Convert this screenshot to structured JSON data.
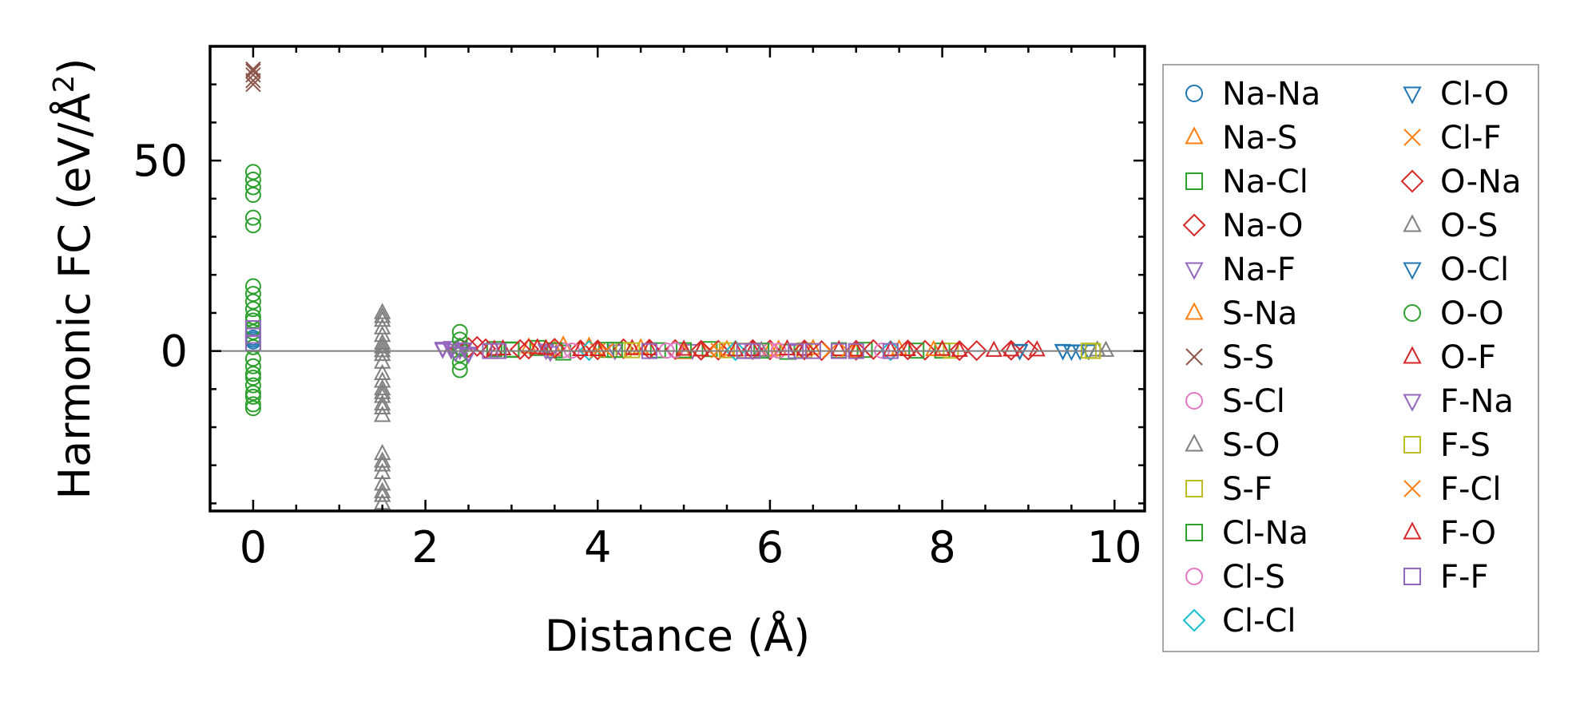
{
  "chart_data": {
    "type": "scatter",
    "title": "",
    "xlabel": "Distance (Å)",
    "ylabel_main": "Harmonic FC (eV/Å",
    "ylabel_sup": "2",
    "ylabel_end": ")",
    "xlim": [
      -0.5,
      10.35
    ],
    "ylim": [
      -42,
      80
    ],
    "xticks": [
      0,
      2,
      4,
      6,
      8,
      10
    ],
    "xtick_labels": [
      "0",
      "2",
      "4",
      "6",
      "8",
      "10"
    ],
    "yticks": [
      0,
      50
    ],
    "ytick_labels": [
      "0",
      "50"
    ],
    "reference_line_y": 0,
    "grid": false,
    "legend_position": "right-outside",
    "legend_columns": 2,
    "series": [
      {
        "name": "Na-Na",
        "marker": "circle",
        "color": "#1f77b4",
        "x": [
          0,
          0,
          0
        ],
        "y": [
          3,
          2.5,
          3.5
        ]
      },
      {
        "name": "Na-S",
        "marker": "triangle-up",
        "color": "#ff7f0e",
        "x": [
          3.2,
          3.4,
          3.6,
          4.0,
          4.5,
          5.0,
          5.5,
          6.0,
          6.5,
          7.0,
          7.5,
          8.0
        ],
        "y": [
          1,
          0.5,
          1.5,
          0.3,
          0.8,
          -0.5,
          0.4,
          0.2,
          0.6,
          -0.3,
          0.5,
          0.2
        ]
      },
      {
        "name": "Na-Cl",
        "marker": "square",
        "color": "#2ca02c",
        "x": [
          2.8,
          3.0,
          3.3,
          3.6,
          4.1,
          4.7,
          5.3,
          6.2,
          7.1,
          8.0
        ],
        "y": [
          0.5,
          0.3,
          0.8,
          -0.4,
          0.3,
          0.2,
          0.5,
          -0.2,
          0.3,
          0.1
        ]
      },
      {
        "name": "Na-O",
        "marker": "diamond",
        "color": "#d62728",
        "x": [
          2.4,
          2.6,
          3.2,
          3.8,
          4.3,
          4.9,
          5.4,
          6.0,
          6.6,
          7.2,
          7.8,
          8.4,
          9.0
        ],
        "y": [
          0.8,
          1.2,
          0.5,
          0.3,
          0.6,
          0.4,
          0.2,
          0.3,
          0.1,
          0.4,
          0.2,
          0.1,
          0.2
        ]
      },
      {
        "name": "Na-F",
        "marker": "triangle-down",
        "color": "#9467bd",
        "x": [
          2.2,
          2.3,
          2.4,
          2.5,
          3.4,
          4.2,
          5.1,
          6.3
        ],
        "y": [
          0.5,
          1.0,
          0.2,
          -0.5,
          0.3,
          0.1,
          0.2,
          0.1
        ]
      },
      {
        "name": "S-Na",
        "marker": "triangle-up",
        "color": "#ff7f0e",
        "x": [
          3.3,
          3.5,
          3.9,
          4.4,
          5.2,
          6.1,
          7.0,
          7.9
        ],
        "y": [
          0.8,
          0.3,
          1.2,
          0.5,
          0.2,
          0.4,
          0.1,
          0.3
        ]
      },
      {
        "name": "S-S",
        "marker": "x",
        "color": "#8c564b",
        "x": [
          0,
          0,
          0,
          0,
          0
        ],
        "y": [
          74,
          72.5,
          71,
          73.5,
          70
        ]
      },
      {
        "name": "S-Cl",
        "marker": "circle",
        "color": "#e377c2",
        "x": [
          3.6,
          4.8,
          6.0,
          7.3
        ],
        "y": [
          0.2,
          0.1,
          0.2,
          0.1
        ]
      },
      {
        "name": "S-O",
        "marker": "triangle-up",
        "color": "#7f7f7f",
        "x": [
          1.5,
          1.5,
          1.5,
          1.5,
          1.5,
          1.5,
          1.5,
          1.5,
          1.5,
          1.5,
          1.5,
          1.5,
          1.5,
          1.5,
          1.5,
          1.5,
          1.5,
          1.5,
          1.5,
          1.5,
          1.5,
          1.5,
          1.5
        ],
        "y": [
          10,
          8,
          6,
          4,
          1,
          0,
          -1,
          -6,
          -8,
          -10,
          -12,
          -14,
          -15,
          -17,
          -27,
          -29,
          -32,
          -35,
          -37,
          -38,
          -40,
          -3,
          2
        ]
      },
      {
        "name": "S-F",
        "marker": "square",
        "color": "#bcbd22",
        "x": [
          4.3,
          5.5,
          5.8,
          6.4,
          8.1
        ],
        "y": [
          0.3,
          0.2,
          0.1,
          0.2,
          0.1
        ]
      },
      {
        "name": "Cl-Na",
        "marker": "square",
        "color": "#2ca02c",
        "x": [
          3.0,
          3.5,
          4.2,
          5.0,
          5.9,
          6.8,
          7.7
        ],
        "y": [
          0.4,
          0.2,
          0.3,
          0.2,
          0.1,
          0.2,
          0.1
        ]
      },
      {
        "name": "Cl-S",
        "marker": "circle",
        "color": "#e377c2",
        "x": [
          3.7,
          4.9,
          6.1
        ],
        "y": [
          0.1,
          0.2,
          0.1
        ]
      },
      {
        "name": "Cl-Cl",
        "marker": "diamond",
        "color": "#17becf",
        "x": [
          3.9,
          5.6,
          7.4
        ],
        "y": [
          0.1,
          0.1,
          0.1
        ]
      },
      {
        "name": "Cl-O",
        "marker": "triangle-down",
        "color": "#1f77b4",
        "x": [
          9.4,
          9.5,
          9.7,
          8.9
        ],
        "y": [
          0.1,
          0.0,
          0.1,
          0.1
        ]
      },
      {
        "name": "Cl-F",
        "marker": "x",
        "color": "#ff7f0e",
        "x": [
          4.0,
          5.3,
          6.7
        ],
        "y": [
          0.1,
          0.1,
          0.1
        ]
      },
      {
        "name": "O-Na",
        "marker": "diamond",
        "color": "#d62728",
        "x": [
          2.5,
          2.7,
          3.1,
          3.5,
          4.0,
          4.6,
          5.2,
          5.8,
          6.4,
          7.0,
          7.6,
          8.2,
          8.8
        ],
        "y": [
          0.9,
          0.6,
          0.4,
          0.7,
          0.3,
          0.5,
          0.2,
          0.4,
          0.3,
          0.2,
          0.3,
          0.1,
          0.2
        ]
      },
      {
        "name": "O-S",
        "marker": "triangle-up",
        "color": "#7f7f7f",
        "x": [
          1.5,
          1.5,
          1.5,
          9.8,
          9.9,
          5.9
        ],
        "y": [
          9,
          -11,
          -30,
          0.2,
          0.1,
          0.1
        ]
      },
      {
        "name": "O-Cl",
        "marker": "triangle-down",
        "color": "#1f77b4",
        "x": [
          9.4,
          9.6,
          8.9
        ],
        "y": [
          0.2,
          0.1,
          0.2
        ]
      },
      {
        "name": "O-O",
        "marker": "circle",
        "color": "#2ca02c",
        "x": [
          0,
          0,
          0,
          0,
          0,
          0,
          0,
          0,
          0,
          0,
          0,
          0,
          0,
          0,
          0,
          0,
          0,
          0,
          0,
          0,
          0,
          0,
          0,
          0,
          2.4,
          2.4,
          2.4,
          2.4,
          2.4,
          2.4
        ],
        "y": [
          47,
          45,
          43,
          41,
          35,
          33,
          17,
          15,
          13,
          11,
          9,
          8,
          6,
          5,
          1,
          -2,
          -4,
          -6,
          -7,
          -9,
          -11,
          -12,
          -14,
          -15,
          5,
          3,
          1,
          -1,
          -3,
          -5
        ]
      },
      {
        "name": "O-F",
        "marker": "triangle-up",
        "color": "#d62728",
        "x": [
          2.9,
          3.3,
          3.8,
          4.4,
          5.0,
          5.6,
          6.2,
          6.8,
          7.4,
          8.0,
          8.6,
          9.1
        ],
        "y": [
          0.5,
          0.8,
          0.3,
          0.6,
          0.4,
          0.2,
          0.5,
          0.3,
          0.2,
          0.4,
          0.1,
          0.2
        ]
      },
      {
        "name": "F-Na",
        "marker": "triangle-down",
        "color": "#9467bd",
        "x": [
          2.2,
          2.3,
          2.35,
          2.45,
          2.5,
          3.4,
          3.45
        ],
        "y": [
          0.8,
          0.3,
          -0.4,
          0.6,
          -0.8,
          0.2,
          -0.3
        ]
      },
      {
        "name": "F-S",
        "marker": "square",
        "color": "#bcbd22",
        "x": [
          4.4,
          5.7,
          9.7,
          9.75
        ],
        "y": [
          0.2,
          0.1,
          0.1,
          0.0
        ]
      },
      {
        "name": "F-Cl",
        "marker": "x",
        "color": "#ff7f0e",
        "x": [
          4.1,
          5.4,
          6.9
        ],
        "y": [
          0.1,
          0.1,
          0.1
        ]
      },
      {
        "name": "F-O",
        "marker": "triangle-up",
        "color": "#d62728",
        "x": [
          2.8,
          3.4,
          4.0,
          4.6,
          5.2,
          5.8,
          6.4,
          7.0,
          7.6,
          8.2,
          8.8
        ],
        "y": [
          0.4,
          0.6,
          0.3,
          0.5,
          0.2,
          0.3,
          0.4,
          0.2,
          0.3,
          0.1,
          0.2
        ]
      },
      {
        "name": "F-F",
        "marker": "square",
        "color": "#9467bd",
        "x": [
          0,
          0,
          0,
          2.75,
          2.85,
          4.6,
          5.7,
          5.8,
          6.3,
          6.5,
          6.8,
          7.0,
          7.4
        ],
        "y": [
          6,
          4,
          2,
          0,
          0,
          0,
          0,
          0,
          0,
          0,
          0,
          0,
          0
        ]
      }
    ]
  }
}
